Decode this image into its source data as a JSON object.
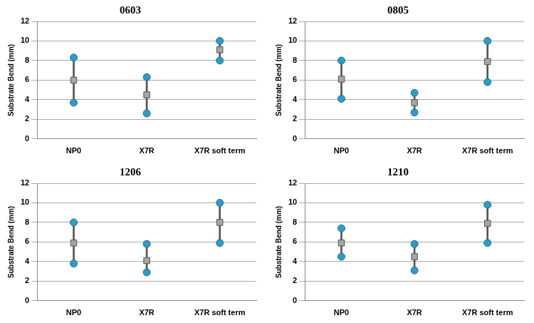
{
  "chart_data": [
    {
      "type": "errorbar",
      "title": "0603",
      "y_label": "Substrate Bend (mm)",
      "categories": [
        "NP0",
        "X7R",
        "X7R soft term"
      ],
      "values": [
        6.0,
        4.5,
        9.1
      ],
      "min": [
        3.7,
        2.6,
        8.0
      ],
      "max": [
        8.3,
        6.3,
        10.0
      ],
      "color": "#a6a6a6",
      "marker": "square",
      "ylim": [
        0,
        12
      ],
      "yticks": [
        0,
        2,
        4,
        6,
        8,
        10,
        12
      ],
      "grid": true
    },
    {
      "type": "errorbar",
      "title": "0805",
      "y_label": "Substrate Bend (mm)",
      "categories": [
        "NP0",
        "X7R",
        "X7R soft term"
      ],
      "values": [
        6.1,
        3.7,
        7.9
      ],
      "min": [
        4.1,
        2.7,
        5.8
      ],
      "max": [
        8.0,
        4.7,
        10.0
      ],
      "color": "#a6a6a6",
      "marker": "square",
      "ylim": [
        0,
        12
      ],
      "yticks": [
        0,
        2,
        4,
        6,
        8,
        10,
        12
      ],
      "grid": true
    },
    {
      "type": "errorbar",
      "title": "1206",
      "y_label": "Substrate Bend (mm)",
      "categories": [
        "NP0",
        "X7R",
        "X7R soft term"
      ],
      "values": [
        5.9,
        4.1,
        8.0
      ],
      "min": [
        3.8,
        2.9,
        5.9
      ],
      "max": [
        8.0,
        5.8,
        10.0
      ],
      "color": "#a6a6a6",
      "marker": "square",
      "ylim": [
        0,
        12
      ],
      "yticks": [
        0,
        2,
        4,
        6,
        8,
        10,
        12
      ],
      "grid": true
    },
    {
      "type": "errorbar",
      "title": "1210",
      "y_label": "Substrate Bend (mm)",
      "categories": [
        "NP0",
        "X7R",
        "X7R soft term"
      ],
      "values": [
        5.9,
        4.5,
        7.9
      ],
      "min": [
        4.5,
        3.1,
        5.9
      ],
      "max": [
        7.4,
        5.8,
        9.8
      ],
      "color": "#a6a6a6",
      "marker": "square",
      "ylim": [
        0,
        12
      ],
      "yticks": [
        0,
        2,
        4,
        6,
        8,
        10,
        12
      ],
      "grid": true
    }
  ]
}
